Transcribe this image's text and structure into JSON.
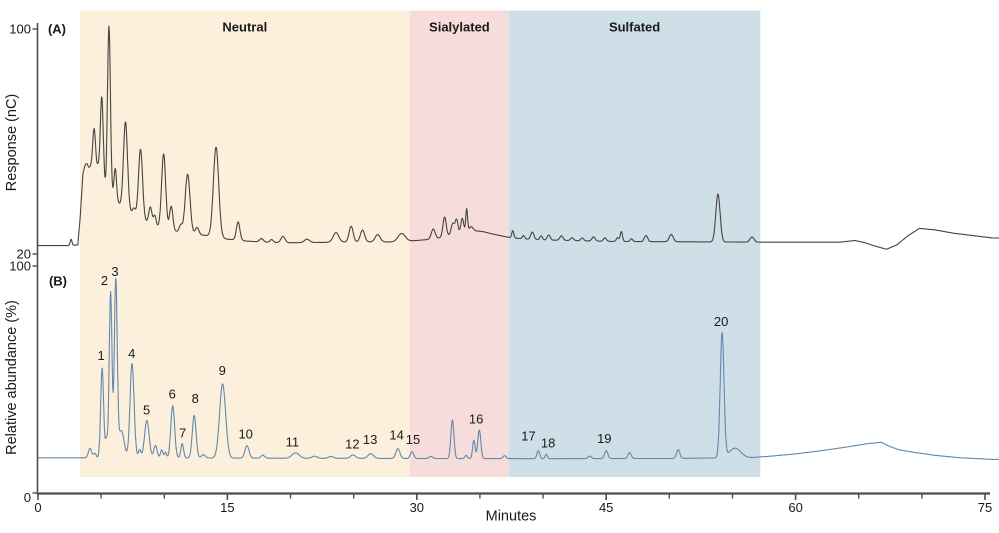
{
  "figure": {
    "panel_a": {
      "label": "(A)",
      "y_axis_title": "Response (nC)",
      "y_tick_top": "100",
      "y_tick_bottom": "20"
    },
    "panel_b": {
      "label": "(B)",
      "y_axis_title": "Relative abundance (%)",
      "y_tick_top": "100",
      "y_tick_bottom": "0"
    },
    "x_axis_title": "Minutes"
  },
  "chart_data": {
    "type": "line",
    "x_axis": {
      "label": "Minutes",
      "range": [
        0,
        75
      ],
      "major_ticks": [
        0,
        15,
        30,
        45,
        60,
        75
      ],
      "minor_ticks": [
        5,
        10,
        20,
        25,
        35,
        40,
        50,
        55,
        65,
        70
      ]
    },
    "regions": [
      {
        "label": "Neutral",
        "start_min": 3.3,
        "end_min": 29.45,
        "color": "#fcf0dc"
      },
      {
        "label": "Sialylated",
        "start_min": 29.45,
        "end_min": 37.3,
        "color": "#f6dcda"
      },
      {
        "label": "Sulfated",
        "start_min": 37.3,
        "end_min": 57.2,
        "color": "#cedfe8"
      }
    ],
    "panels": [
      {
        "name": "A",
        "y_axis_title": "Response (nC)",
        "y_range_shown": [
          20,
          100
        ],
        "y_ticks_shown": [
          100,
          20
        ],
        "trace_color": "#45443f",
        "baseline_points": [
          [
            0,
            23
          ],
          [
            2.4,
            23
          ],
          [
            3.15,
            23.2
          ],
          [
            3.35,
            33
          ],
          [
            3.55,
            45.5
          ],
          [
            3.9,
            48.5
          ],
          [
            4.3,
            47
          ],
          [
            5,
            44
          ],
          [
            5.5,
            42
          ],
          [
            6,
            40
          ],
          [
            6.5,
            37.5
          ],
          [
            7.2,
            35
          ],
          [
            8,
            32.5
          ],
          [
            9,
            30.5
          ],
          [
            10,
            29
          ],
          [
            11,
            28
          ],
          [
            12,
            27.2
          ],
          [
            13.5,
            26.5
          ],
          [
            15,
            25.3
          ],
          [
            16.5,
            24.6
          ],
          [
            18,
            24.2
          ],
          [
            20,
            24
          ],
          [
            22,
            24.1
          ],
          [
            25,
            24.3
          ],
          [
            28,
            24.3
          ],
          [
            30,
            24.8
          ],
          [
            31,
            25.2
          ],
          [
            31.9,
            25.8
          ],
          [
            33,
            27
          ],
          [
            33.9,
            28
          ],
          [
            34.5,
            28.3
          ],
          [
            35.2,
            28
          ],
          [
            36.3,
            26.8
          ],
          [
            37.2,
            26
          ],
          [
            38.5,
            25.3
          ],
          [
            40,
            25
          ],
          [
            42,
            24.8
          ],
          [
            45,
            24.5
          ],
          [
            48,
            24.4
          ],
          [
            53,
            24.3
          ],
          [
            57.5,
            24.2
          ],
          [
            63.5,
            24.2
          ],
          [
            64.7,
            24.8
          ],
          [
            65.5,
            24
          ],
          [
            66.3,
            22.8
          ],
          [
            67.2,
            21.7
          ],
          [
            68,
            23.2
          ],
          [
            68.9,
            26.5
          ],
          [
            69.8,
            29.1
          ],
          [
            71,
            28.6
          ],
          [
            72.5,
            27.4
          ],
          [
            75.6,
            25.7
          ]
        ],
        "peaks": [
          [
            2.62,
            2.2,
            0.07
          ],
          [
            3.75,
            4.5,
            0.2
          ],
          [
            4.18,
            2.5,
            0.12
          ],
          [
            4.45,
            18,
            0.12
          ],
          [
            4.75,
            5,
            0.1
          ],
          [
            5.05,
            32,
            0.12
          ],
          [
            5.62,
            59.5,
            0.115
          ],
          [
            6.12,
            11,
            0.1
          ],
          [
            6.93,
            31,
            0.16
          ],
          [
            7.6,
            2.5,
            0.12
          ],
          [
            8.12,
            25,
            0.16
          ],
          [
            8.9,
            6,
            0.13
          ],
          [
            9.25,
            3.5,
            0.1
          ],
          [
            9.95,
            26.5,
            0.16
          ],
          [
            10.55,
            8.5,
            0.13
          ],
          [
            11.3,
            2.5,
            0.12
          ],
          [
            11.85,
            21,
            0.19
          ],
          [
            12.6,
            2.5,
            0.14
          ],
          [
            14.1,
            32,
            0.21
          ],
          [
            15.85,
            6.5,
            0.14
          ],
          [
            17.7,
            1.2,
            0.15
          ],
          [
            18.5,
            1,
            0.12
          ],
          [
            19.4,
            2.2,
            0.16
          ],
          [
            21.3,
            1.2,
            0.2
          ],
          [
            23.6,
            3.4,
            0.22
          ],
          [
            24.8,
            5.6,
            0.16
          ],
          [
            25.7,
            4.2,
            0.17
          ],
          [
            26.9,
            2.6,
            0.2
          ],
          [
            28.8,
            2.8,
            0.28
          ],
          [
            31.3,
            3.5,
            0.15
          ],
          [
            32.2,
            7,
            0.13
          ],
          [
            32.85,
            4,
            0.13
          ],
          [
            33.15,
            5,
            0.11
          ],
          [
            33.6,
            5,
            0.11
          ],
          [
            33.95,
            8,
            0.07
          ],
          [
            34.3,
            1.5,
            0.15
          ],
          [
            37.6,
            2.5,
            0.08
          ],
          [
            38.45,
            1.2,
            0.1
          ],
          [
            39.15,
            2.6,
            0.13
          ],
          [
            39.85,
            1.4,
            0.1
          ],
          [
            40.45,
            1.8,
            0.12
          ],
          [
            41.45,
            1.6,
            0.13
          ],
          [
            42.3,
            1,
            0.12
          ],
          [
            43.1,
            1,
            0.12
          ],
          [
            44,
            1.5,
            0.13
          ],
          [
            44.9,
            1.2,
            0.12
          ],
          [
            45.9,
            1.3,
            0.1
          ],
          [
            46.2,
            3.5,
            0.09
          ],
          [
            47,
            1,
            0.1
          ],
          [
            48.15,
            2.2,
            0.13
          ],
          [
            50.15,
            2.6,
            0.16
          ],
          [
            53.85,
            17,
            0.17
          ],
          [
            56.55,
            1.8,
            0.16
          ]
        ]
      },
      {
        "name": "B",
        "y_axis_title": "Relative abundance (%)",
        "y_range_shown": [
          0,
          100
        ],
        "y_ticks_shown": [
          100,
          0
        ],
        "trace_color": "#6288ad",
        "baseline_points": [
          [
            0,
            15.5
          ],
          [
            4,
            15.5
          ],
          [
            29,
            15.2
          ],
          [
            40,
            15.1
          ],
          [
            50,
            15.2
          ],
          [
            56.5,
            15.6
          ],
          [
            58,
            16.2
          ],
          [
            60,
            17.2
          ],
          [
            62,
            18.6
          ],
          [
            64,
            20.2
          ],
          [
            65.8,
            21.8
          ],
          [
            66.8,
            22.3
          ],
          [
            67.4,
            20.6
          ],
          [
            68.2,
            19
          ],
          [
            69.5,
            17.8
          ],
          [
            71,
            16.6
          ],
          [
            73,
            15.5
          ],
          [
            75.6,
            14.8
          ]
        ],
        "peaks": [
          [
            4.12,
            4.2,
            0.13
          ],
          [
            4.5,
            2,
            0.1
          ],
          [
            5.08,
            39.5,
            0.115
          ],
          [
            5.42,
            8,
            0.09
          ],
          [
            5.75,
            73,
            0.11
          ],
          [
            6.16,
            77.5,
            0.115
          ],
          [
            6.6,
            12,
            0.22
          ],
          [
            7.45,
            41.5,
            0.16
          ],
          [
            8.05,
            3.5,
            0.1
          ],
          [
            8.62,
            16.5,
            0.18
          ],
          [
            9.3,
            5.5,
            0.13
          ],
          [
            9.8,
            3.5,
            0.1
          ],
          [
            10.1,
            2.5,
            0.08
          ],
          [
            10.67,
            23,
            0.15
          ],
          [
            11.42,
            6.3,
            0.11
          ],
          [
            12.37,
            18.7,
            0.15
          ],
          [
            13.1,
            1.5,
            0.15
          ],
          [
            14.62,
            32.6,
            0.24
          ],
          [
            16.55,
            5.5,
            0.16
          ],
          [
            17.8,
            1.3,
            0.15
          ],
          [
            20.4,
            2.4,
            0.28
          ],
          [
            21.9,
            0.9,
            0.2
          ],
          [
            23.2,
            0.8,
            0.2
          ],
          [
            24.95,
            1.5,
            0.2
          ],
          [
            26.35,
            2.1,
            0.22
          ],
          [
            28.5,
            4.3,
            0.16
          ],
          [
            29.62,
            3,
            0.13
          ],
          [
            31.1,
            0.9,
            0.15
          ],
          [
            32.82,
            17,
            0.12
          ],
          [
            33.9,
            1.4,
            0.1
          ],
          [
            34.52,
            8,
            0.1
          ],
          [
            34.95,
            12.6,
            0.12
          ],
          [
            36.95,
            1.3,
            0.12
          ],
          [
            39.62,
            3.5,
            0.11
          ],
          [
            40.25,
            1.9,
            0.09
          ],
          [
            43.7,
            1.1,
            0.13
          ],
          [
            45.0,
            3.5,
            0.13
          ],
          [
            46.85,
            2.6,
            0.13
          ],
          [
            50.7,
            3.8,
            0.13
          ],
          [
            54.18,
            54.8,
            0.15
          ],
          [
            55.2,
            4.2,
            0.45
          ]
        ],
        "numbered_peaks": [
          {
            "n": "1",
            "t": 5.08,
            "apex_pct": 55,
            "label_t": 5.0,
            "label_pct": 60.5
          },
          {
            "n": "2",
            "t": 5.75,
            "apex_pct": 88.5,
            "label_t": 5.27,
            "label_pct": 93.5
          },
          {
            "n": "3",
            "t": 6.16,
            "apex_pct": 93,
            "label_t": 6.1,
            "label_pct": 97.5
          },
          {
            "n": "4",
            "t": 7.45,
            "apex_pct": 57,
            "label_t": 7.42,
            "label_pct": 61.5
          },
          {
            "n": "5",
            "t": 8.62,
            "apex_pct": 32,
            "label_t": 8.6,
            "label_pct": 36.5
          },
          {
            "n": "6",
            "t": 10.67,
            "apex_pct": 38.5,
            "label_t": 10.64,
            "label_pct": 43.5
          },
          {
            "n": "7",
            "t": 11.42,
            "apex_pct": 21.8,
            "label_t": 11.45,
            "label_pct": 26.5
          },
          {
            "n": "8",
            "t": 12.37,
            "apex_pct": 34,
            "label_t": 12.45,
            "label_pct": 41.5
          },
          {
            "n": "9",
            "t": 14.62,
            "apex_pct": 48,
            "label_t": 14.6,
            "label_pct": 54
          },
          {
            "n": "10",
            "t": 16.55,
            "apex_pct": 21,
            "label_t": 16.45,
            "label_pct": 26
          },
          {
            "n": "11",
            "t": 20.4,
            "apex_pct": 17.9,
            "label_t": 20.15,
            "label_pct": 22.5
          },
          {
            "n": "12",
            "t": 24.95,
            "apex_pct": 16.8,
            "label_t": 24.9,
            "label_pct": 21.5
          },
          {
            "n": "13",
            "t": 26.35,
            "apex_pct": 17.4,
            "label_t": 26.3,
            "label_pct": 23.5
          },
          {
            "n": "14",
            "t": 28.5,
            "apex_pct": 19.6,
            "label_t": 28.4,
            "label_pct": 25.5
          },
          {
            "n": "15",
            "t": 29.62,
            "apex_pct": 18.3,
            "label_t": 29.7,
            "label_pct": 23.5
          },
          {
            "n": "16",
            "t": 34.95,
            "apex_pct": 27.9,
            "label_t": 34.7,
            "label_pct": 32.5
          },
          {
            "n": "17",
            "t": 39.62,
            "apex_pct": 18.8,
            "label_t": 38.85,
            "label_pct": 25
          },
          {
            "n": "18",
            "t": 40.25,
            "apex_pct": 17.2,
            "label_t": 40.4,
            "label_pct": 22
          },
          {
            "n": "19",
            "t": 45.0,
            "apex_pct": 18.8,
            "label_t": 44.85,
            "label_pct": 24
          },
          {
            "n": "20",
            "t": 54.18,
            "apex_pct": 70,
            "label_t": 54.1,
            "label_pct": 75.5
          }
        ]
      }
    ]
  }
}
